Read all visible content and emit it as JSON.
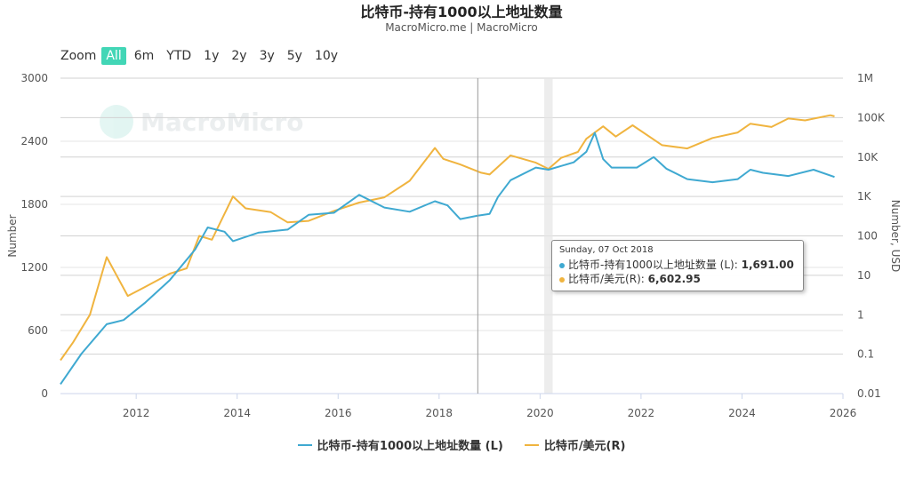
{
  "header": {
    "title": "比特币-持有1000以上地址数量",
    "subtitle": "MacroMicro.me | MacroMicro"
  },
  "zoom": {
    "label": "Zoom",
    "buttons": [
      "All",
      "6m",
      "YTD",
      "1y",
      "2y",
      "3y",
      "5y",
      "10y"
    ],
    "active": "All"
  },
  "watermark": {
    "text": "MacroMicro"
  },
  "colors": {
    "left_series": "#3fa9d1",
    "right_series": "#f0b43f",
    "accent": "#42d6b6"
  },
  "tooltip": {
    "date": "Sunday, 07 Oct 2018",
    "rows": [
      {
        "label": "比特币-持有1000以上地址数量 (L): ",
        "value": "1,691.00"
      },
      {
        "label": "比特币/美元(R): ",
        "value": "6,602.95"
      }
    ]
  },
  "chart_data": {
    "type": "line",
    "x_axis": {
      "range": [
        2010.5,
        2026
      ],
      "ticks": [
        "2012",
        "2014",
        "2016",
        "2018",
        "2020",
        "2022",
        "2024",
        "2026"
      ]
    },
    "y_left": {
      "label": "Number",
      "range": [
        0,
        3000
      ],
      "ticks": [
        "0",
        "600",
        "1200",
        "1800",
        "2400",
        "3000"
      ]
    },
    "y_right": {
      "label": "Number, USD",
      "scale": "log",
      "range": [
        0.01,
        1000000
      ],
      "ticks": [
        "0.01",
        "0.1",
        "1",
        "10",
        "100",
        "1K",
        "10K",
        "100K",
        "1M"
      ]
    },
    "crosshair_x": "2018-10-07",
    "shaded_band": [
      "2020-02",
      "2020-04"
    ],
    "series": [
      {
        "name": "比特币-持有1000以上地址数量 (L)",
        "axis": "left",
        "x": [
          "2010-07",
          "2010-12",
          "2011-06",
          "2011-10",
          "2012-03",
          "2012-09",
          "2013-03",
          "2013-06",
          "2013-10",
          "2013-12",
          "2014-06",
          "2015-01",
          "2015-06",
          "2015-12",
          "2016-06",
          "2016-12",
          "2017-06",
          "2017-12",
          "2018-03",
          "2018-06",
          "2018-10",
          "2019-01",
          "2019-03",
          "2019-06",
          "2019-12",
          "2020-03",
          "2020-09",
          "2020-12",
          "2021-02",
          "2021-04",
          "2021-06",
          "2021-12",
          "2022-04",
          "2022-07",
          "2022-12",
          "2023-06",
          "2023-12",
          "2024-03",
          "2024-06",
          "2024-12",
          "2025-06",
          "2025-11"
        ],
        "y": [
          90,
          380,
          660,
          700,
          860,
          1080,
          1370,
          1580,
          1540,
          1450,
          1530,
          1560,
          1700,
          1720,
          1890,
          1770,
          1730,
          1830,
          1790,
          1660,
          1691,
          1710,
          1870,
          2030,
          2150,
          2130,
          2200,
          2300,
          2480,
          2230,
          2150,
          2150,
          2250,
          2140,
          2040,
          2010,
          2040,
          2130,
          2100,
          2070,
          2130,
          2060
        ]
      },
      {
        "name": "比特币/美元(R)",
        "axis": "right",
        "x": [
          "2010-07",
          "2010-10",
          "2011-02",
          "2011-06",
          "2011-11",
          "2012-03",
          "2012-09",
          "2013-01",
          "2013-04",
          "2013-07",
          "2013-12",
          "2014-03",
          "2014-09",
          "2015-01",
          "2015-06",
          "2015-12",
          "2016-06",
          "2016-12",
          "2017-06",
          "2017-12",
          "2018-02",
          "2018-06",
          "2018-11",
          "2019-01",
          "2019-06",
          "2019-12",
          "2020-03",
          "2020-06",
          "2020-10",
          "2020-12",
          "2021-04",
          "2021-07",
          "2021-11",
          "2022-06",
          "2022-12",
          "2023-06",
          "2023-12",
          "2024-03",
          "2024-08",
          "2024-12",
          "2025-04",
          "2025-10",
          "2025-11"
        ],
        "y": [
          0.07,
          0.2,
          1,
          29,
          3,
          5,
          11,
          15,
          100,
          80,
          1000,
          500,
          400,
          220,
          240,
          430,
          700,
          950,
          2500,
          17000,
          9000,
          6500,
          4000,
          3600,
          11000,
          7200,
          5000,
          9500,
          13500,
          29000,
          60000,
          33000,
          64000,
          20000,
          16500,
          30500,
          42000,
          70000,
          58000,
          95000,
          85000,
          115000,
          108000
        ]
      }
    ]
  },
  "legend": [
    {
      "label": "比特币-持有1000以上地址数量 (L)"
    },
    {
      "label": "比特币/美元(R)"
    }
  ]
}
